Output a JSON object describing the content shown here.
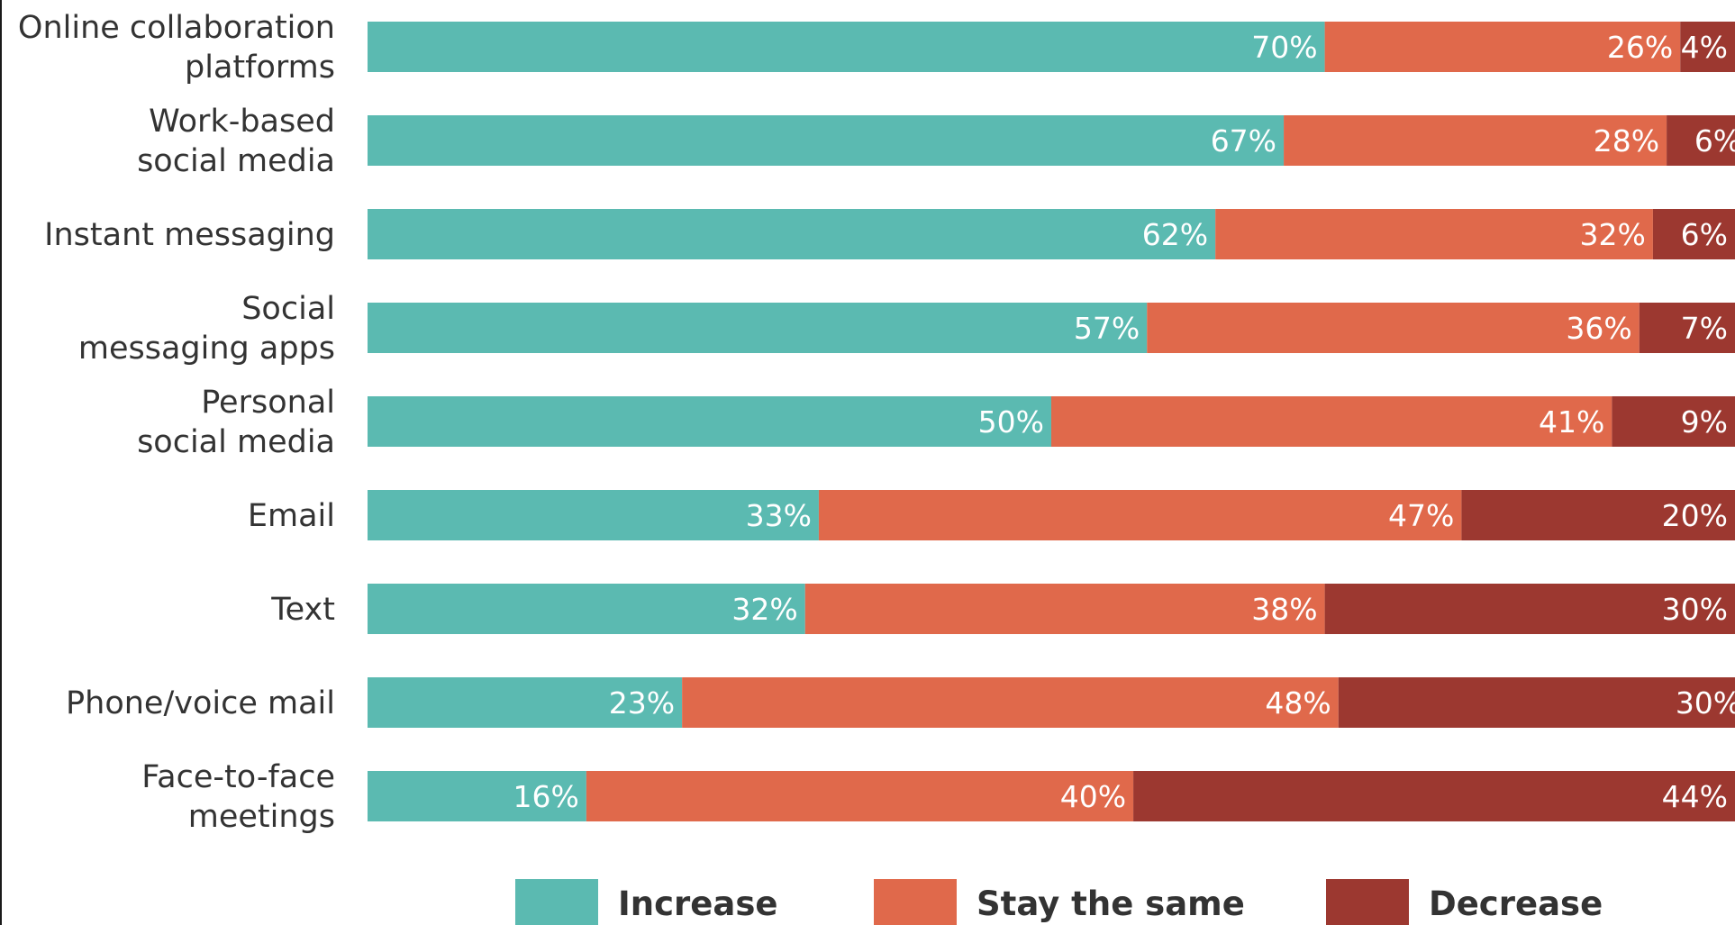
{
  "chart_data": {
    "type": "bar",
    "orientation": "horizontal",
    "stacked": true,
    "categories": [
      [
        "Online collaboration",
        "platforms"
      ],
      [
        "Work-based",
        "social media"
      ],
      [
        "Instant messaging"
      ],
      [
        "Social",
        "messaging apps"
      ],
      [
        "Personal",
        "social media"
      ],
      [
        "Email"
      ],
      [
        "Text"
      ],
      [
        "Phone/voice mail"
      ],
      [
        "Face-to-face",
        "meetings"
      ]
    ],
    "series": [
      {
        "name": "Increase",
        "color": "#5bbab1",
        "values": [
          70,
          67,
          62,
          57,
          50,
          33,
          32,
          23,
          16
        ]
      },
      {
        "name": "Stay the same",
        "color": "#e0694b",
        "values": [
          26,
          28,
          32,
          36,
          41,
          47,
          38,
          48,
          40
        ]
      },
      {
        "name": "Decrease",
        "color": "#9c3830",
        "values": [
          4,
          6,
          6,
          7,
          9,
          20,
          30,
          30,
          44
        ]
      }
    ],
    "value_suffix": "%",
    "xlim": [
      0,
      100
    ],
    "legend_position": "bottom",
    "grid": false
  }
}
